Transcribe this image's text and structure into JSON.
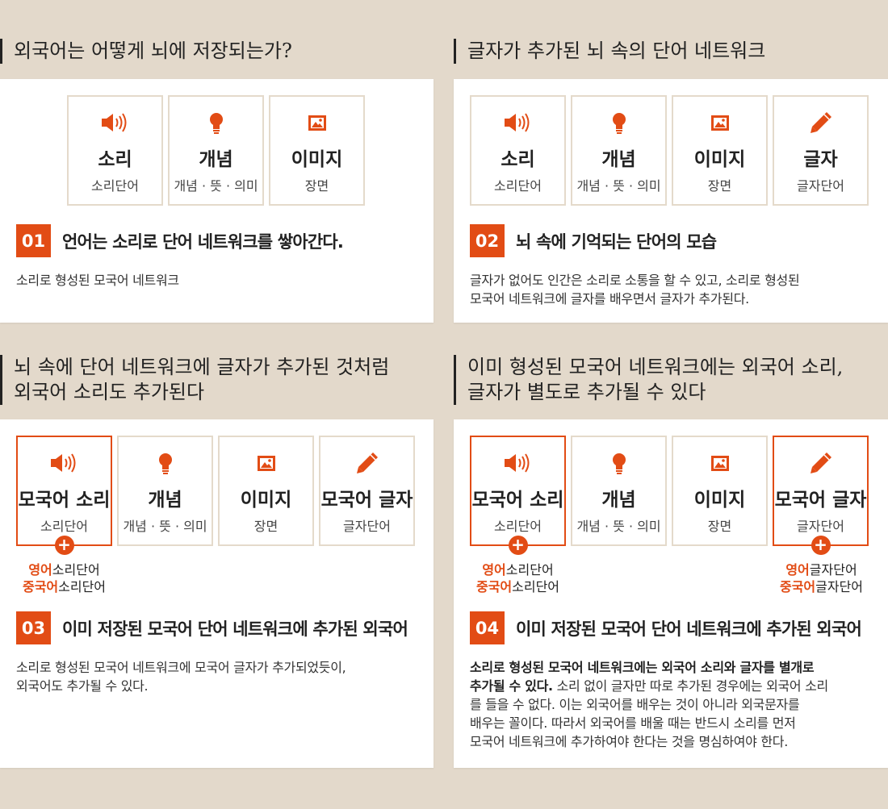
{
  "common": {
    "sound": {
      "title": "소리",
      "sub": "소리단어"
    },
    "concept": {
      "title": "개념",
      "sub": "개념 · 뜻 · 의미"
    },
    "image": {
      "title": "이미지",
      "sub": "장면"
    },
    "letter": {
      "title": "글자",
      "sub": "글자단어"
    },
    "native_sound": {
      "title": "모국어 소리",
      "sub": "소리단어"
    },
    "native_letter": {
      "title": "모국어 글자",
      "sub": "글자단어"
    }
  },
  "extras": {
    "en_sound": {
      "hl": "영어",
      "rest": "소리단어"
    },
    "cn_sound": {
      "hl": "중국어",
      "rest": "소리단어"
    },
    "en_letter": {
      "hl": "영어",
      "rest": "글자단어"
    },
    "cn_letter": {
      "hl": "중국어",
      "rest": "글자단어"
    }
  },
  "panels": {
    "p1": {
      "heading": "외국어는 어떻게 뇌에 저장되는가?",
      "num": "01",
      "step": "언어는 소리로 단어 네트워크를 쌓아간다.",
      "desc": "소리로 형성된 모국어 네트워크"
    },
    "p2": {
      "heading": "글자가 추가된 뇌 속의 단어 네트워크",
      "num": "02",
      "step": "뇌 속에 기억되는 단어의 모습",
      "desc1": "글자가 없어도 인간은 소리로 소통을 할 수 있고, 소리로 형성된",
      "desc2": "모국어 네트워크에 글자를 배우면서 글자가 추가된다."
    },
    "p3": {
      "heading1": "뇌 속에 단어 네트워크에 글자가 추가된 것처럼",
      "heading2": "외국어 소리도 추가된다",
      "num": "03",
      "step": "이미 저장된 모국어 단어 네트워크에 추가된 외국어",
      "desc1": "소리로 형성된 모국어 네트워크에 모국어 글자가 추가되었듯이,",
      "desc2": "외국어도 추가될 수 있다."
    },
    "p4": {
      "heading1": "이미 형성된 모국어 네트워크에는 외국어 소리,",
      "heading2": "글자가 별도로 추가될 수 있다",
      "num": "04",
      "step": "이미 저장된 모국어 단어 네트워크에 추가된 외국어",
      "bold1": "소리로 형성된 모국어 네트워크에는 외국어 소리와 글자를 별개로",
      "bold2": "추가될 수 있다.",
      "line2": " 소리 없이 글자만 따로 추가된 경우에는 외국어 소리",
      "line3": "를 들을 수 없다. 이는 외국어를 배우는 것이 아니라 외국문자를",
      "line4": "배우는 꼴이다.  따라서 외국어를 배울 때는 반드시 소리를 먼저",
      "line5": "모국어 네트워크에 추가하여야 한다는 것을 명심하여야 한다."
    }
  },
  "colors": {
    "accent": "#e24c15",
    "bg": "#e3d9cb",
    "box_border": "#e4dacb"
  }
}
